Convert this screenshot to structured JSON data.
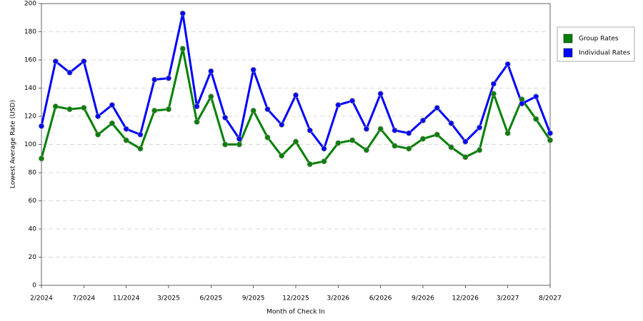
{
  "chart_data": {
    "type": "line",
    "x_label": "Month of Check In",
    "y_label": "Lowest Average Rate (USD)",
    "categories": [
      "2/2024",
      null,
      null,
      "7/2024",
      null,
      null,
      "11/2024",
      null,
      null,
      "3/2025",
      null,
      null,
      "6/2025",
      null,
      null,
      "9/2025",
      null,
      null,
      "12/2025",
      null,
      null,
      "3/2026",
      null,
      null,
      "6/2026",
      null,
      null,
      "9/2026",
      null,
      null,
      "12/2026",
      null,
      null,
      "3/2027",
      null,
      null,
      "8/2027"
    ],
    "series": [
      {
        "name": "Group Rates",
        "color": "#008000",
        "values": [
          90,
          127,
          125,
          126,
          107,
          115,
          103,
          97,
          124,
          125,
          168,
          116,
          134,
          100,
          100,
          124,
          105,
          92,
          102,
          86,
          88,
          101,
          103,
          96,
          111,
          99,
          97,
          104,
          107,
          98,
          91,
          96,
          136,
          108,
          132,
          118,
          103
        ]
      },
      {
        "name": "Individual Rates",
        "color": "#0000ff",
        "values": [
          113,
          159,
          151,
          159,
          120,
          128,
          111,
          107,
          146,
          147,
          193,
          127,
          152,
          119,
          104,
          153,
          125,
          114,
          135,
          110,
          97,
          128,
          131,
          111,
          136,
          110,
          108,
          117,
          126,
          115,
          102,
          112,
          143,
          157,
          129,
          134,
          108
        ]
      }
    ],
    "ylim": [
      0,
      200
    ],
    "yticks": [
      0,
      20,
      40,
      60,
      80,
      100,
      120,
      140,
      160,
      180,
      200
    ],
    "grid": true,
    "legend": "right"
  }
}
